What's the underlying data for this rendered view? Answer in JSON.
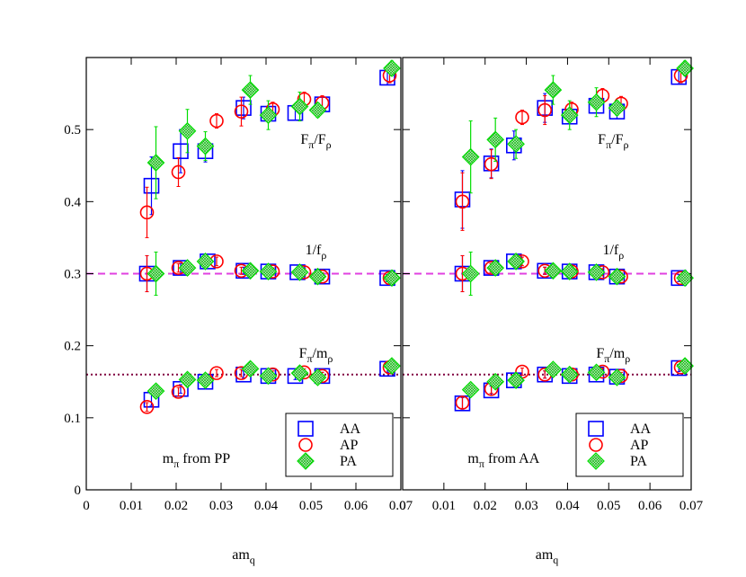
{
  "chart_data": [
    {
      "type": "scatter",
      "xlim": [
        0,
        0.07
      ],
      "xticks": [
        0,
        0.01,
        0.02,
        0.03,
        0.04,
        0.05,
        0.06,
        0.07
      ],
      "ylim": [
        0,
        0.6
      ],
      "yticks": [
        0,
        0.1,
        0.2,
        0.3,
        0.4,
        0.5
      ],
      "show_ytick_labels": true,
      "x_label": [
        {
          "text": "am"
        },
        {
          "text": "q",
          "sub": true
        }
      ],
      "legend": "lower right",
      "hlines": [
        {
          "y": 0.3,
          "color": "#e040e0",
          "style": "dashed"
        },
        {
          "y": 0.16,
          "color": "#800040",
          "style": "dotted"
        }
      ],
      "annotations": [
        [
          {
            "text": "F"
          },
          {
            "text": "π",
            "sub": true
          },
          {
            "text": "/F"
          },
          {
            "text": "ρ",
            "sub": true
          }
        ],
        [
          {
            "text": "1/f"
          },
          {
            "text": "ρ",
            "sub": true
          }
        ],
        [
          {
            "text": "F"
          },
          {
            "text": "π",
            "sub": true
          },
          {
            "text": "/m"
          },
          {
            "text": "ρ",
            "sub": true
          }
        ],
        [
          {
            "text": "m"
          },
          {
            "text": "π",
            "sub": true
          },
          {
            "text": " from PP"
          }
        ]
      ],
      "series": [
        {
          "name": "AA",
          "marker": "square",
          "color": "#0000ff",
          "x": [
            0.0145,
            0.021,
            0.0265,
            0.035,
            0.0405,
            0.0465,
            0.0525,
            0.067,
            0.0135,
            0.021,
            0.027,
            0.035,
            0.0405,
            0.047,
            0.0525,
            0.067,
            0.0145,
            0.021,
            0.0265,
            0.035,
            0.0405,
            0.0465,
            0.0525,
            0.067
          ],
          "values": [
            0.422,
            0.47,
            0.47,
            0.53,
            0.522,
            0.523,
            0.535,
            0.572,
            0.3,
            0.308,
            0.317,
            0.304,
            0.303,
            0.302,
            0.296,
            0.294,
            0.125,
            0.14,
            0.15,
            0.16,
            0.158,
            0.158,
            0.158,
            0.168
          ],
          "errors": [
            0.04,
            0.03,
            0.015,
            0.015,
            0.01,
            0.01,
            0.01,
            0.01,
            0.025,
            0.006,
            0.006,
            0.005,
            0.005,
            0.005,
            0.005,
            0.005,
            0.008,
            0.006,
            0.005,
            0.005,
            0.005,
            0.005,
            0.005,
            0.005
          ]
        },
        {
          "name": "AP",
          "marker": "circle",
          "color": "#ff0000",
          "x": [
            0.0135,
            0.0205,
            0.029,
            0.0345,
            0.0415,
            0.0485,
            0.0525,
            0.0675,
            0.0135,
            0.0205,
            0.029,
            0.0345,
            0.0415,
            0.0485,
            0.0525,
            0.0675,
            0.0135,
            0.0205,
            0.029,
            0.0345,
            0.0415,
            0.0485,
            0.0525,
            0.0675
          ],
          "values": [
            0.385,
            0.441,
            0.512,
            0.525,
            0.528,
            0.542,
            0.537,
            0.575,
            0.3,
            0.308,
            0.317,
            0.304,
            0.303,
            0.302,
            0.296,
            0.294,
            0.115,
            0.136,
            0.162,
            0.162,
            0.16,
            0.163,
            0.158,
            0.17
          ],
          "errors": [
            0.035,
            0.02,
            0.01,
            0.02,
            0.01,
            0.01,
            0.01,
            0.01,
            0.025,
            0.006,
            0.006,
            0.005,
            0.005,
            0.005,
            0.005,
            0.005,
            0.006,
            0.006,
            0.005,
            0.005,
            0.005,
            0.005,
            0.005,
            0.005
          ]
        },
        {
          "name": "PA",
          "marker": "diamond",
          "color": "#00dd00",
          "x": [
            0.0155,
            0.0225,
            0.0265,
            0.0365,
            0.0405,
            0.0475,
            0.0515,
            0.068,
            0.0155,
            0.0225,
            0.0265,
            0.0365,
            0.0405,
            0.0475,
            0.0515,
            0.068,
            0.0155,
            0.0225,
            0.0265,
            0.0365,
            0.0405,
            0.0475,
            0.0515,
            0.068
          ],
          "values": [
            0.454,
            0.498,
            0.477,
            0.555,
            0.52,
            0.532,
            0.527,
            0.585,
            0.3,
            0.308,
            0.317,
            0.304,
            0.303,
            0.302,
            0.296,
            0.294,
            0.137,
            0.153,
            0.152,
            0.168,
            0.158,
            0.162,
            0.156,
            0.172
          ],
          "errors": [
            0.05,
            0.03,
            0.02,
            0.02,
            0.02,
            0.02,
            0.01,
            0.01,
            0.03,
            0.006,
            0.006,
            0.005,
            0.005,
            0.005,
            0.005,
            0.005,
            0.008,
            0.006,
            0.005,
            0.005,
            0.005,
            0.005,
            0.005,
            0.005
          ]
        }
      ]
    },
    {
      "type": "scatter",
      "xlim": [
        0,
        0.07
      ],
      "xticks": [
        0,
        0.01,
        0.02,
        0.03,
        0.04,
        0.05,
        0.06,
        0.07
      ],
      "ylim": [
        0,
        0.6
      ],
      "yticks": [
        0,
        0.1,
        0.2,
        0.3,
        0.4,
        0.5
      ],
      "show_ytick_labels": false,
      "x_label": [
        {
          "text": "am"
        },
        {
          "text": "q",
          "sub": true
        }
      ],
      "legend": "lower right",
      "hlines": [
        {
          "y": 0.3,
          "color": "#e040e0",
          "style": "dashed"
        },
        {
          "y": 0.16,
          "color": "#800040",
          "style": "dotted"
        }
      ],
      "annotations": [
        [
          {
            "text": "F"
          },
          {
            "text": "π",
            "sub": true
          },
          {
            "text": "/F"
          },
          {
            "text": "ρ",
            "sub": true
          }
        ],
        [
          {
            "text": "1/f"
          },
          {
            "text": "ρ",
            "sub": true
          }
        ],
        [
          {
            "text": "F"
          },
          {
            "text": "π",
            "sub": true
          },
          {
            "text": "/m"
          },
          {
            "text": "ρ",
            "sub": true
          }
        ],
        [
          {
            "text": "m"
          },
          {
            "text": "π",
            "sub": true
          },
          {
            "text": " from AA"
          }
        ]
      ],
      "series": [
        {
          "name": "AA",
          "marker": "square",
          "color": "#0000ff",
          "x": [
            0.0145,
            0.0215,
            0.027,
            0.0345,
            0.0405,
            0.047,
            0.052,
            0.067,
            0.0145,
            0.0215,
            0.027,
            0.0345,
            0.0405,
            0.047,
            0.052,
            0.067,
            0.0145,
            0.0215,
            0.027,
            0.0345,
            0.0405,
            0.047,
            0.052,
            0.067
          ],
          "values": [
            0.403,
            0.453,
            0.478,
            0.53,
            0.518,
            0.533,
            0.525,
            0.573,
            0.3,
            0.308,
            0.317,
            0.304,
            0.303,
            0.302,
            0.296,
            0.294,
            0.12,
            0.138,
            0.152,
            0.16,
            0.158,
            0.16,
            0.157,
            0.169
          ],
          "errors": [
            0.04,
            0.02,
            0.02,
            0.02,
            0.01,
            0.01,
            0.01,
            0.01,
            0.025,
            0.006,
            0.006,
            0.005,
            0.005,
            0.005,
            0.005,
            0.005,
            0.008,
            0.006,
            0.005,
            0.005,
            0.005,
            0.005,
            0.005,
            0.005
          ]
        },
        {
          "name": "AP",
          "marker": "circle",
          "color": "#ff0000",
          "x": [
            0.0145,
            0.0215,
            0.029,
            0.0345,
            0.041,
            0.0485,
            0.053,
            0.0675,
            0.0145,
            0.0215,
            0.029,
            0.0345,
            0.041,
            0.0485,
            0.053,
            0.0675,
            0.0145,
            0.0215,
            0.029,
            0.0345,
            0.041,
            0.0485,
            0.053,
            0.0675
          ],
          "values": [
            0.4,
            0.452,
            0.517,
            0.527,
            0.528,
            0.547,
            0.536,
            0.575,
            0.3,
            0.308,
            0.317,
            0.304,
            0.303,
            0.302,
            0.296,
            0.294,
            0.121,
            0.14,
            0.164,
            0.16,
            0.16,
            0.164,
            0.158,
            0.17
          ],
          "errors": [
            0.04,
            0.02,
            0.01,
            0.02,
            0.01,
            0.01,
            0.01,
            0.01,
            0.025,
            0.006,
            0.006,
            0.005,
            0.005,
            0.005,
            0.005,
            0.005,
            0.008,
            0.006,
            0.005,
            0.005,
            0.005,
            0.005,
            0.005,
            0.005
          ]
        },
        {
          "name": "PA",
          "marker": "diamond",
          "color": "#00dd00",
          "x": [
            0.0165,
            0.0225,
            0.0275,
            0.0365,
            0.0405,
            0.047,
            0.052,
            0.0685,
            0.0165,
            0.0225,
            0.0275,
            0.0365,
            0.0405,
            0.047,
            0.052,
            0.0685,
            0.0165,
            0.0225,
            0.0275,
            0.0365,
            0.0405,
            0.047,
            0.052,
            0.0685
          ],
          "values": [
            0.462,
            0.486,
            0.48,
            0.555,
            0.52,
            0.538,
            0.53,
            0.585,
            0.3,
            0.308,
            0.317,
            0.304,
            0.303,
            0.302,
            0.296,
            0.294,
            0.139,
            0.15,
            0.152,
            0.167,
            0.16,
            0.163,
            0.156,
            0.172
          ],
          "errors": [
            0.05,
            0.03,
            0.02,
            0.02,
            0.02,
            0.02,
            0.01,
            0.01,
            0.03,
            0.006,
            0.006,
            0.005,
            0.005,
            0.005,
            0.005,
            0.005,
            0.008,
            0.006,
            0.005,
            0.005,
            0.005,
            0.005,
            0.005,
            0.005
          ]
        }
      ]
    }
  ]
}
